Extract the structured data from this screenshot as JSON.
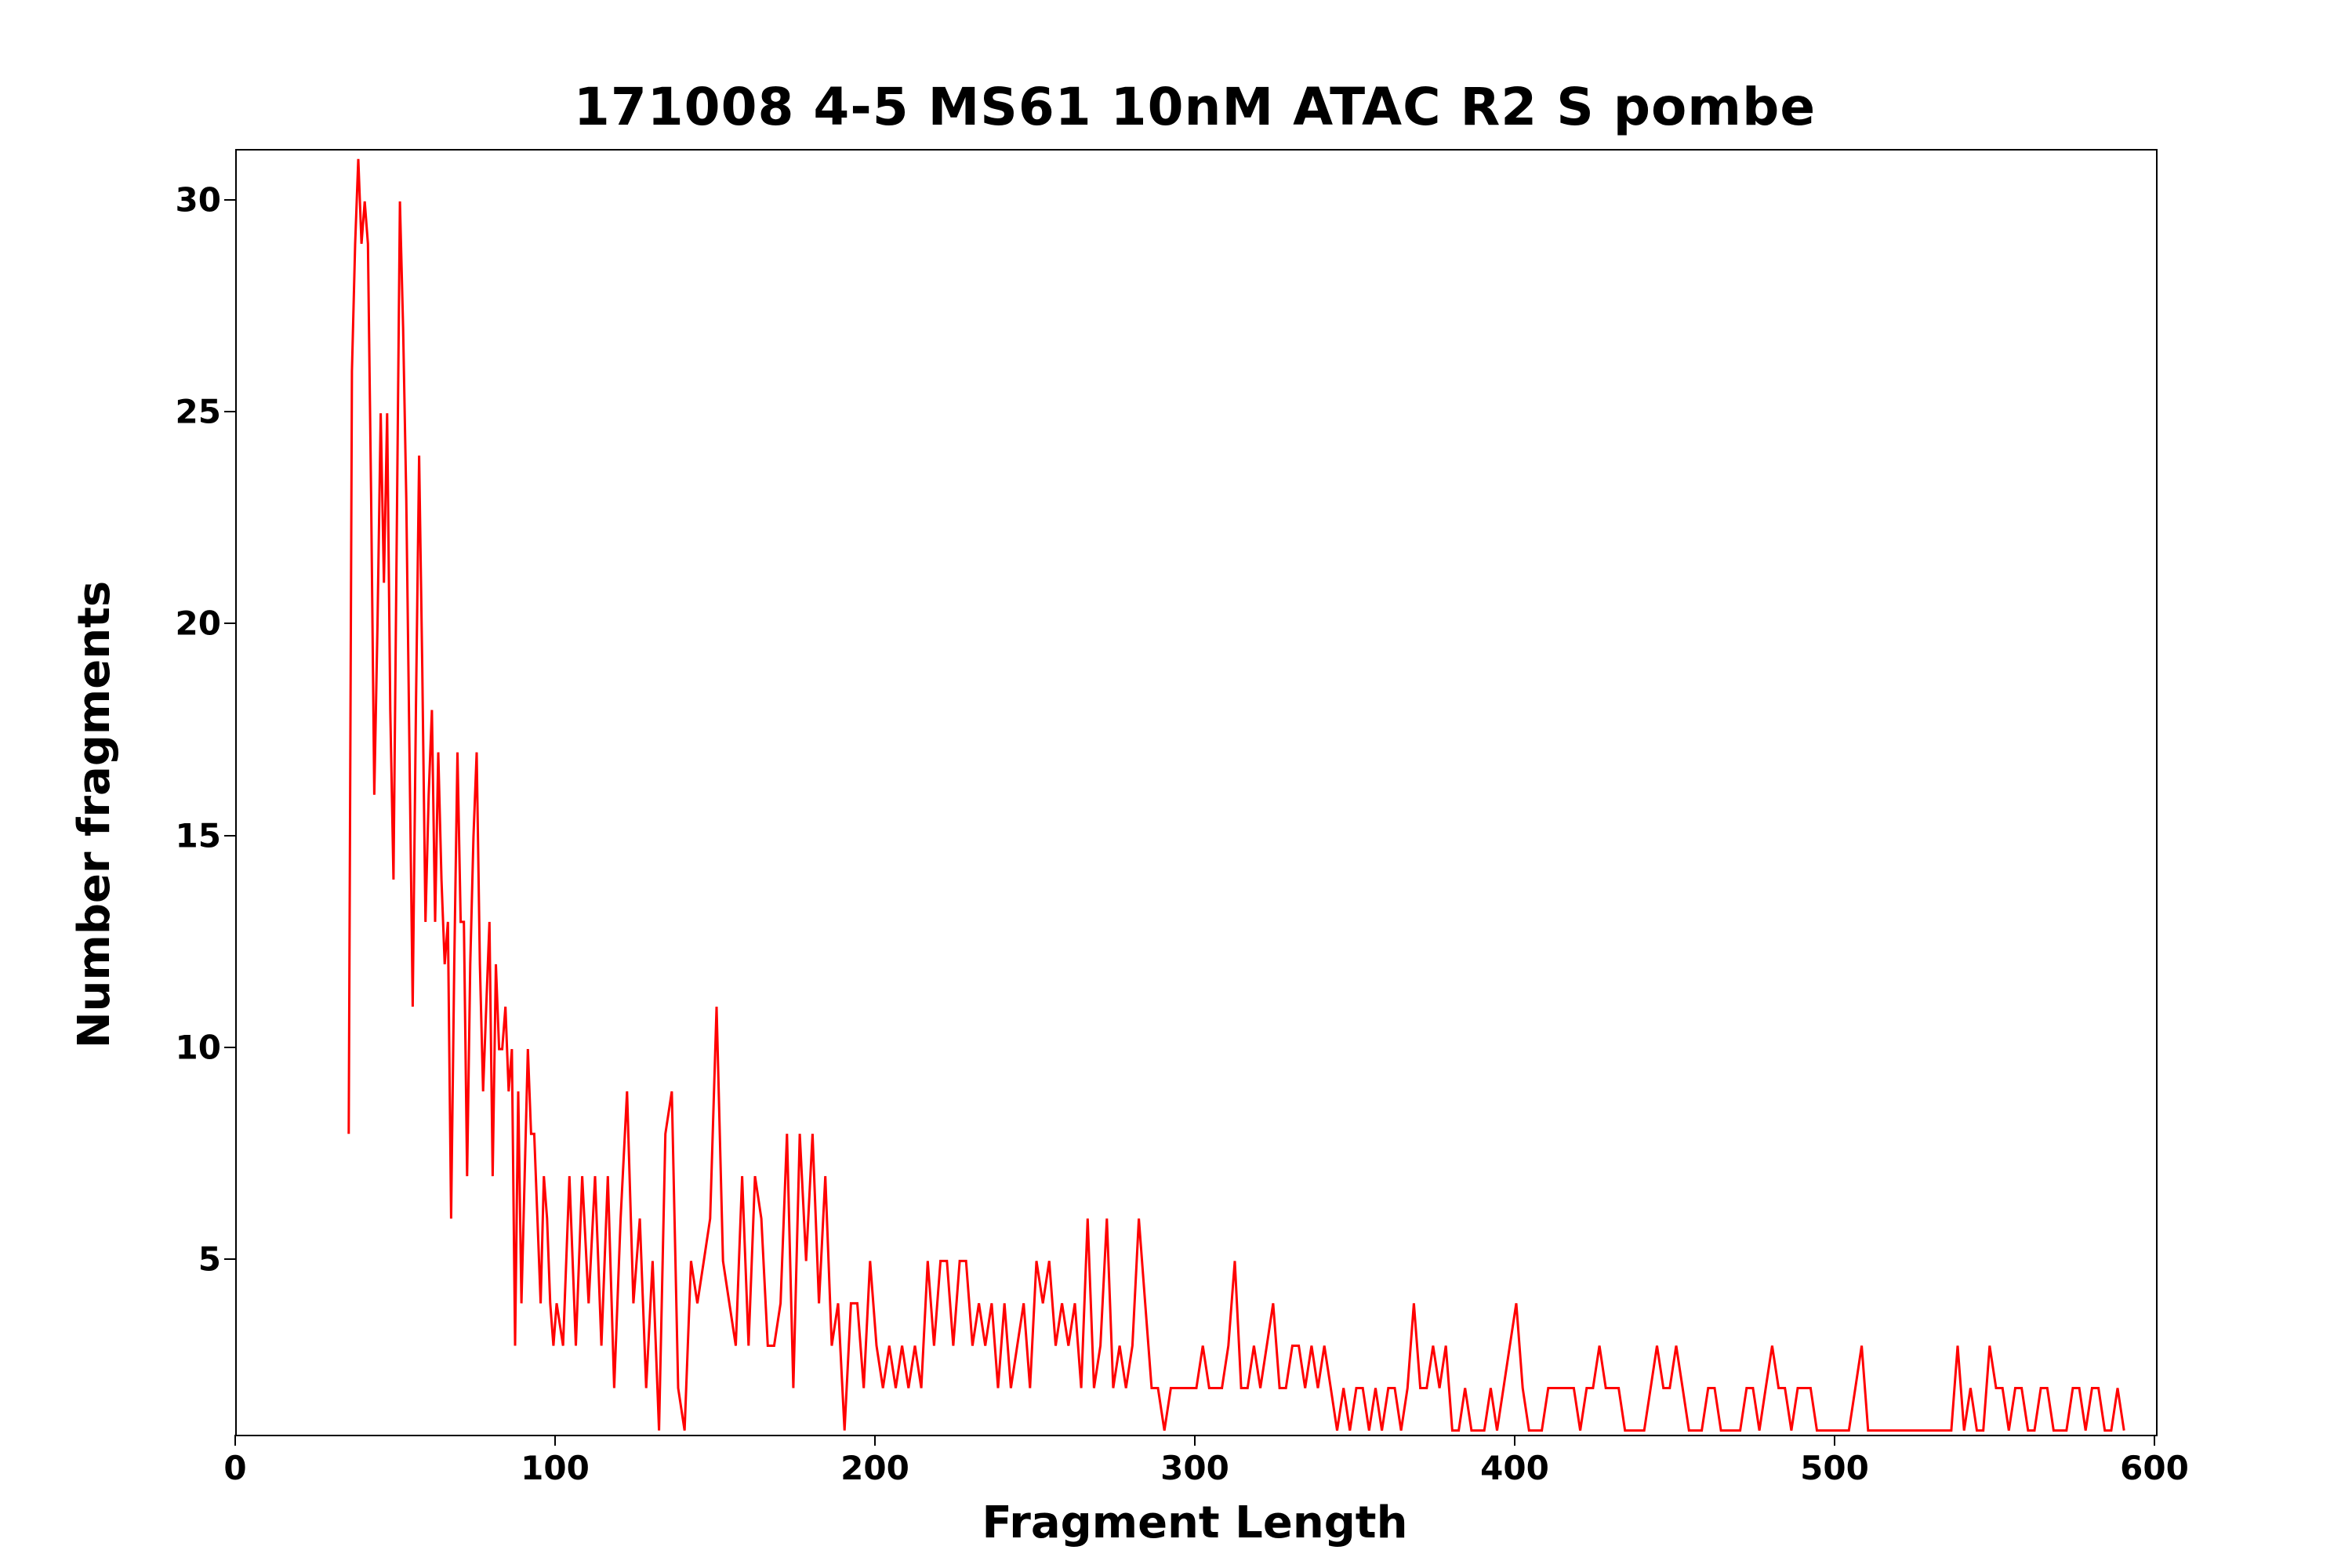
{
  "title": "171008 4-5 MS61 10nM ATAC R2 S pombe",
  "chart_data": {
    "type": "line",
    "title": "171008 4-5 MS61 10nM ATAC R2 S pombe",
    "xlabel": "Fragment Length",
    "ylabel": "Number fragments",
    "xlim": [
      0,
      600
    ],
    "ylim": [
      0.9,
      31.2
    ],
    "xticks": [
      0,
      100,
      200,
      300,
      400,
      500,
      600
    ],
    "yticks": [
      5,
      10,
      15,
      20,
      25,
      30
    ],
    "line_color": "#ff0000",
    "grid": false,
    "legend": "none",
    "x": [
      35,
      36,
      37,
      38,
      39,
      40,
      41,
      42,
      43,
      44,
      45,
      46,
      47,
      48,
      49,
      50,
      51,
      52,
      53,
      54,
      55,
      56,
      57,
      58,
      59,
      60,
      61,
      62,
      63,
      64,
      65,
      66,
      67,
      68,
      69,
      70,
      71,
      72,
      73,
      74,
      75,
      76,
      77,
      78,
      79,
      80,
      81,
      82,
      83,
      84,
      85,
      86,
      87,
      88,
      89,
      90,
      91,
      92,
      93,
      94,
      95,
      96,
      97,
      98,
      99,
      100,
      102,
      104,
      106,
      108,
      110,
      112,
      114,
      116,
      118,
      120,
      122,
      124,
      126,
      128,
      130,
      132,
      134,
      136,
      138,
      140,
      142,
      144,
      146,
      148,
      150,
      152,
      154,
      156,
      158,
      160,
      162,
      164,
      166,
      168,
      170,
      172,
      174,
      176,
      178,
      180,
      182,
      184,
      186,
      188,
      190,
      192,
      194,
      196,
      198,
      200,
      202,
      204,
      206,
      208,
      210,
      212,
      214,
      216,
      218,
      220,
      222,
      224,
      226,
      228,
      230,
      232,
      234,
      236,
      238,
      240,
      242,
      244,
      246,
      248,
      250,
      252,
      254,
      256,
      258,
      260,
      262,
      264,
      266,
      268,
      270,
      272,
      274,
      276,
      278,
      280,
      282,
      284,
      286,
      288,
      290,
      292,
      294,
      296,
      298,
      300,
      302,
      304,
      306,
      308,
      310,
      312,
      314,
      316,
      318,
      320,
      322,
      324,
      326,
      328,
      330,
      332,
      334,
      336,
      338,
      340,
      342,
      344,
      346,
      348,
      350,
      352,
      354,
      356,
      358,
      360,
      362,
      364,
      366,
      368,
      370,
      372,
      374,
      376,
      378,
      380,
      382,
      384,
      386,
      388,
      390,
      392,
      394,
      396,
      398,
      400,
      402,
      404,
      406,
      408,
      410,
      412,
      414,
      416,
      418,
      420,
      422,
      424,
      426,
      428,
      430,
      432,
      434,
      436,
      438,
      440,
      442,
      444,
      446,
      448,
      450,
      452,
      454,
      456,
      458,
      460,
      462,
      464,
      466,
      468,
      470,
      472,
      474,
      476,
      478,
      480,
      482,
      484,
      486,
      488,
      490,
      492,
      494,
      496,
      498,
      500,
      502,
      504,
      506,
      508,
      510,
      512,
      514,
      516,
      518,
      520,
      522,
      524,
      526,
      528,
      530,
      532,
      534,
      536,
      538,
      540,
      542,
      544,
      546,
      548,
      550,
      552,
      554,
      556,
      558,
      560,
      562,
      564,
      566,
      568,
      570,
      572,
      574,
      576,
      578,
      580,
      582,
      584,
      586,
      588,
      590
    ],
    "y": [
      8,
      26,
      29,
      31,
      29,
      30,
      29,
      23,
      16,
      20,
      25,
      21,
      25,
      18,
      14,
      22,
      30,
      27,
      23,
      17,
      11,
      18,
      24,
      19,
      13,
      16,
      18,
      13,
      17,
      14,
      12,
      13,
      6,
      12,
      17,
      13,
      13,
      7,
      12,
      15,
      17,
      12,
      9,
      11,
      13,
      7,
      12,
      10,
      10,
      11,
      9,
      10,
      3,
      9,
      4,
      7,
      10,
      8,
      8,
      6,
      4,
      7,
      6,
      4,
      3,
      4,
      3,
      7,
      3,
      7,
      4,
      7,
      3,
      7,
      2,
      6,
      9,
      4,
      6,
      2,
      5,
      1,
      8,
      9,
      2,
      1,
      5,
      4,
      5,
      6,
      11,
      5,
      4,
      3,
      7,
      3,
      7,
      6,
      3,
      3,
      4,
      8,
      2,
      8,
      5,
      8,
      4,
      7,
      3,
      4,
      1,
      4,
      4,
      2,
      5,
      3,
      2,
      3,
      2,
      3,
      2,
      3,
      2,
      5,
      3,
      5,
      5,
      3,
      5,
      5,
      3,
      4,
      3,
      4,
      2,
      4,
      2,
      3,
      4,
      2,
      5,
      4,
      5,
      3,
      4,
      3,
      4,
      2,
      6,
      2,
      3,
      6,
      2,
      3,
      2,
      3,
      6,
      4,
      2,
      2,
      1,
      2,
      2,
      2,
      2,
      2,
      3,
      2,
      2,
      2,
      3,
      5,
      2,
      2,
      3,
      2,
      3,
      4,
      2,
      2,
      3,
      3,
      2,
      3,
      2,
      3,
      2,
      1,
      2,
      1,
      2,
      2,
      1,
      2,
      1,
      2,
      2,
      1,
      2,
      4,
      2,
      2,
      3,
      2,
      3,
      1,
      1,
      2,
      1,
      1,
      1,
      2,
      1,
      2,
      3,
      4,
      2,
      1,
      1,
      1,
      2,
      2,
      2,
      2,
      2,
      1,
      2,
      2,
      3,
      2,
      2,
      2,
      1,
      1,
      1,
      1,
      2,
      3,
      2,
      2,
      3,
      2,
      1,
      1,
      1,
      2,
      2,
      1,
      1,
      1,
      1,
      2,
      2,
      1,
      2,
      3,
      2,
      2,
      1,
      2,
      2,
      2,
      1,
      1,
      1,
      1,
      1,
      1,
      2,
      3,
      1,
      1,
      1,
      1,
      1,
      1,
      1,
      1,
      1,
      1,
      1,
      1,
      1,
      1,
      3,
      1,
      2,
      1,
      1,
      3,
      2,
      2,
      1,
      2,
      2,
      1,
      1,
      2,
      2,
      1,
      1,
      1,
      2,
      2,
      1,
      2,
      2,
      1,
      1,
      2,
      1
    ]
  }
}
